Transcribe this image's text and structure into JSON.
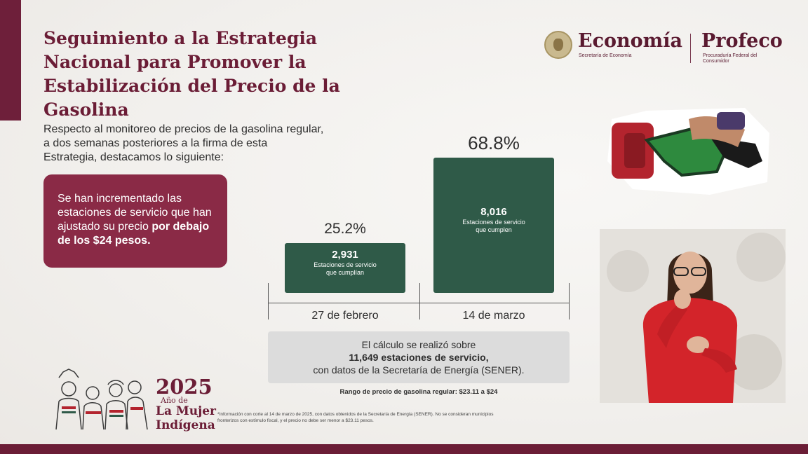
{
  "title": "Seguimiento a la Estrategia Nacional para Promover la Estabilización del Precio de la Gasolina",
  "logos": {
    "economia": "Economía",
    "economia_sub": "Secretaría de Economía",
    "profeco": "Profeco",
    "profeco_sub": "Procuraduría Federal del Consumidor"
  },
  "intro": "Respecto al monitoreo de precios de la gasolina regular, a dos semanas posteriores a la firma de esta Estrategia, destacamos lo siguiente:",
  "callout": {
    "text": "Se han incrementado las estaciones de servicio que han ajustado su precio ",
    "bold": "por debajo de los $24 pesos."
  },
  "chart_data": {
    "type": "bar",
    "categories": [
      "27 de febrero",
      "14 de marzo"
    ],
    "values": [
      25.2,
      68.8
    ],
    "percent_labels": [
      "25.2%",
      "68.8%"
    ],
    "bar_values": [
      "2,931",
      "8,016"
    ],
    "bar_labels": [
      "Estaciones de servicio que cumplían",
      "Estaciones de servicio que cumplen"
    ],
    "ylim": [
      0,
      100
    ],
    "grid": false,
    "colors": {
      "bar": "#2f5a48"
    }
  },
  "note": {
    "line1": "El cálculo se realizó sobre",
    "line2": "11,649 estaciones de servicio,",
    "line3": "con datos de la Secretaría de Energía (SENER)."
  },
  "range": "Rango de precio de gasolina regular: $23.11 a $24",
  "footnote": "*Información con corte al 14 de marzo de 2025, con datos obtenidos de la Secretaría de Energía (SENER). No se consideran municipios fronterizos con estímulo fiscal, y el precio no debe ser menor a $23.11 pesos.",
  "year_logo": {
    "year": "2025",
    "line1": "Año de",
    "line2": "La Mujer",
    "line3": "Indígena"
  },
  "colors": {
    "accent": "#6b1d36",
    "callout": "#8a2a46",
    "bar": "#2f5a48"
  }
}
